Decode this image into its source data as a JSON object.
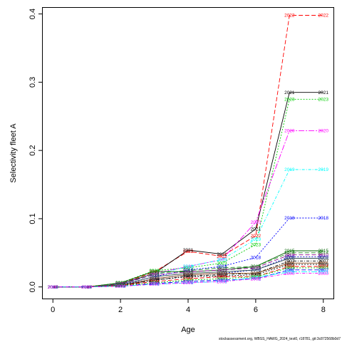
{
  "chart_data": {
    "type": "line",
    "title": "",
    "xlabel": "Age",
    "ylabel": "Selectivity fleet A",
    "x": [
      0,
      1,
      2,
      3,
      4,
      5,
      6,
      7,
      8
    ],
    "xlim": [
      -0.3,
      8.3
    ],
    "ylim": [
      -0.017,
      0.41
    ],
    "xticks": [
      "0",
      "2",
      "4",
      "6",
      "8"
    ],
    "xtick_values": [
      0,
      2,
      4,
      6,
      8
    ],
    "yticks": [
      "0.0",
      "0.1",
      "0.2",
      "0.3",
      "0.4"
    ],
    "ytick_values": [
      0.0,
      0.1,
      0.2,
      0.3,
      0.4
    ],
    "grid": false,
    "legend": "none",
    "series": [
      {
        "name": "2022",
        "color": "#ff0000",
        "dash": "6,3",
        "values": [
          0,
          0,
          0.005,
          0.022,
          0.052,
          0.045,
          0.075,
          0.398,
          0.398
        ]
      },
      {
        "name": "2021",
        "color": "#000000",
        "dash": "",
        "values": [
          0,
          0,
          0.004,
          0.02,
          0.054,
          0.048,
          0.085,
          0.285,
          0.285
        ]
      },
      {
        "name": "2023",
        "color": "#00cd00",
        "dash": "2,2",
        "values": [
          0,
          0,
          0.006,
          0.024,
          0.028,
          0.035,
          0.062,
          0.275,
          0.275
        ]
      },
      {
        "name": "2020",
        "color": "#ff00ff",
        "dash": "8,2,2,2",
        "values": [
          0,
          0,
          0.005,
          0.02,
          0.03,
          0.04,
          0.095,
          0.229,
          0.229
        ]
      },
      {
        "name": "2019",
        "color": "#00ffff",
        "dash": "4,2,1,2",
        "values": [
          0,
          0,
          0.004,
          0.018,
          0.03,
          0.04,
          0.07,
          0.172,
          0.172
        ]
      },
      {
        "name": "2018",
        "color": "#0000ff",
        "dash": "2,2",
        "values": [
          0,
          0,
          0.003,
          0.015,
          0.025,
          0.03,
          0.043,
          0.101,
          0.101
        ]
      },
      {
        "name": "2015",
        "color": "#006400",
        "dash": "",
        "values": [
          0,
          0,
          0.006,
          0.023,
          0.022,
          0.025,
          0.03,
          0.053,
          0.053
        ]
      },
      {
        "name": "2014",
        "color": "#228b22",
        "dash": "6,3",
        "values": [
          0,
          0,
          0.005,
          0.02,
          0.024,
          0.028,
          0.03,
          0.05,
          0.05
        ]
      },
      {
        "name": "2010",
        "color": "#8b008b",
        "dash": "6,3",
        "values": [
          0,
          0,
          0.004,
          0.018,
          0.022,
          0.025,
          0.028,
          0.047,
          0.047
        ]
      },
      {
        "name": "2009",
        "color": "#0000cd",
        "dash": "2,2",
        "values": [
          0,
          0,
          0.003,
          0.012,
          0.018,
          0.02,
          0.025,
          0.044,
          0.044
        ]
      },
      {
        "name": "2008",
        "color": "#2f4f4f",
        "dash": "",
        "values": [
          0,
          0,
          0.003,
          0.015,
          0.02,
          0.022,
          0.025,
          0.042,
          0.042
        ]
      },
      {
        "name": "2007",
        "color": "#000000",
        "dash": "4,2,1,2",
        "values": [
          0,
          0,
          0.002,
          0.01,
          0.016,
          0.018,
          0.02,
          0.038,
          0.038
        ]
      },
      {
        "name": "2006",
        "color": "#8b4513",
        "dash": "",
        "values": [
          0,
          0,
          0.002,
          0.012,
          0.018,
          0.02,
          0.02,
          0.035,
          0.035
        ]
      },
      {
        "name": "2005",
        "color": "#000000",
        "dash": "2,2",
        "values": [
          0,
          0,
          0.002,
          0.01,
          0.015,
          0.016,
          0.018,
          0.033,
          0.033
        ]
      },
      {
        "name": "2004",
        "color": "#ff0000",
        "dash": "6,3",
        "values": [
          0,
          0,
          0.002,
          0.008,
          0.012,
          0.015,
          0.015,
          0.03,
          0.03
        ]
      },
      {
        "name": "2003",
        "color": "#00cd00",
        "dash": "2,2",
        "values": [
          0,
          0,
          0.002,
          0.006,
          0.01,
          0.012,
          0.015,
          0.028,
          0.028
        ]
      },
      {
        "name": "2002",
        "color": "#0000ff",
        "dash": "6,3",
        "values": [
          0,
          0,
          0.001,
          0.005,
          0.008,
          0.01,
          0.012,
          0.025,
          0.025
        ]
      },
      {
        "name": "2001",
        "color": "#00ffff",
        "dash": "8,2,2,2",
        "values": [
          0,
          0,
          0.001,
          0.004,
          0.006,
          0.008,
          0.014,
          0.022,
          0.022
        ]
      },
      {
        "name": "2000",
        "color": "#ff00ff",
        "dash": "4,2,1,2",
        "values": [
          0,
          0,
          0.001,
          0.004,
          0.006,
          0.008,
          0.012,
          0.02,
          0.02
        ]
      }
    ],
    "footer": "stockassessment.org, WBSS_HAWG_2024_test0, r18781, git:3c872568b0d7"
  }
}
